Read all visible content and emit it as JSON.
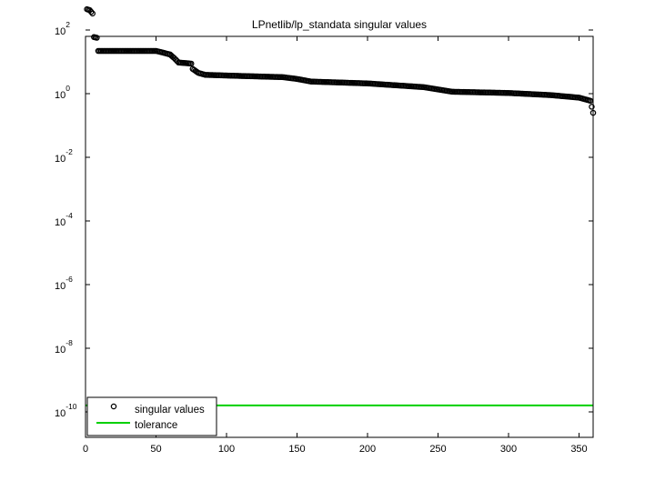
{
  "chart_data": {
    "type": "scatter",
    "title": "LPnetlib/lp_standata singular values",
    "xlabel": "",
    "ylabel": "",
    "xlim": [
      0,
      360
    ],
    "ylim_log10": [
      -10.8,
      1.8
    ],
    "yscale": "log",
    "xticks": [
      0,
      50,
      100,
      150,
      200,
      250,
      300,
      350
    ],
    "yticks": [
      {
        "base": "10",
        "exp": "2",
        "value": 100
      },
      {
        "base": "10",
        "exp": "0",
        "value": 1
      },
      {
        "base": "10",
        "exp": "-2",
        "value": 0.01
      },
      {
        "base": "10",
        "exp": "-4",
        "value": 0.0001
      },
      {
        "base": "10",
        "exp": "-6",
        "value": 1e-06
      },
      {
        "base": "10",
        "exp": "-8",
        "value": 1e-08
      },
      {
        "base": "10",
        "exp": "-10",
        "value": 1e-10
      }
    ],
    "grid": false,
    "legend_position": "bottom-left",
    "series": [
      {
        "name": "singular values",
        "marker": "circle",
        "color": "#000000",
        "profile": [
          [
            1,
            450
          ],
          [
            3,
            420
          ],
          [
            5,
            330
          ],
          [
            6,
            60
          ],
          [
            8,
            57
          ],
          [
            9,
            22
          ],
          [
            50,
            22
          ],
          [
            54,
            20
          ],
          [
            60,
            17
          ],
          [
            63,
            13
          ],
          [
            66,
            9.5
          ],
          [
            75,
            8.8
          ],
          [
            76,
            6
          ],
          [
            80,
            4.5
          ],
          [
            85,
            3.9
          ],
          [
            110,
            3.6
          ],
          [
            140,
            3.3
          ],
          [
            150,
            2.9
          ],
          [
            160,
            2.4
          ],
          [
            200,
            2.1
          ],
          [
            240,
            1.6
          ],
          [
            260,
            1.15
          ],
          [
            300,
            1.05
          ],
          [
            330,
            0.9
          ],
          [
            350,
            0.75
          ],
          [
            358,
            0.6
          ],
          [
            360,
            0.25
          ]
        ]
      },
      {
        "name": "tolerance",
        "type": "line",
        "color": "#00d000",
        "value": 1.6e-10
      }
    ]
  }
}
